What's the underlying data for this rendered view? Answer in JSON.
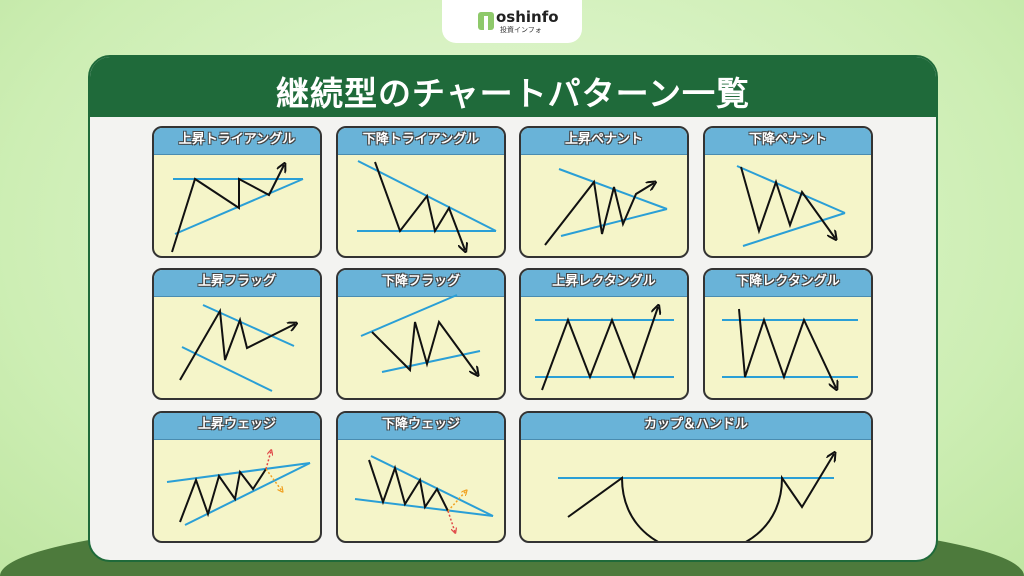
{
  "logo": {
    "name": "oshinfo",
    "sub": "投資インフォ",
    "mark": "T"
  },
  "title": "継続型のチャートパターン一覧",
  "colors": {
    "header": "#1f6a3a",
    "card_header": "#69b3d8",
    "card_body": "#f5f5c9",
    "trend_line": "#2a9fd6",
    "price_line": "#111111",
    "breakout_up": "#e04848",
    "breakout_down": "#f0a020"
  },
  "cards": [
    {
      "title": "上昇トライアングル"
    },
    {
      "title": "下降トライアングル"
    },
    {
      "title": "上昇ペナント"
    },
    {
      "title": "下降ペナント"
    },
    {
      "title": "上昇フラッグ"
    },
    {
      "title": "下降フラッグ"
    },
    {
      "title": "上昇レクタングル"
    },
    {
      "title": "下降レクタングル"
    },
    {
      "title": "上昇ウェッジ"
    },
    {
      "title": "下降ウェッジ"
    },
    {
      "title": "カップ＆ハンドル"
    }
  ]
}
